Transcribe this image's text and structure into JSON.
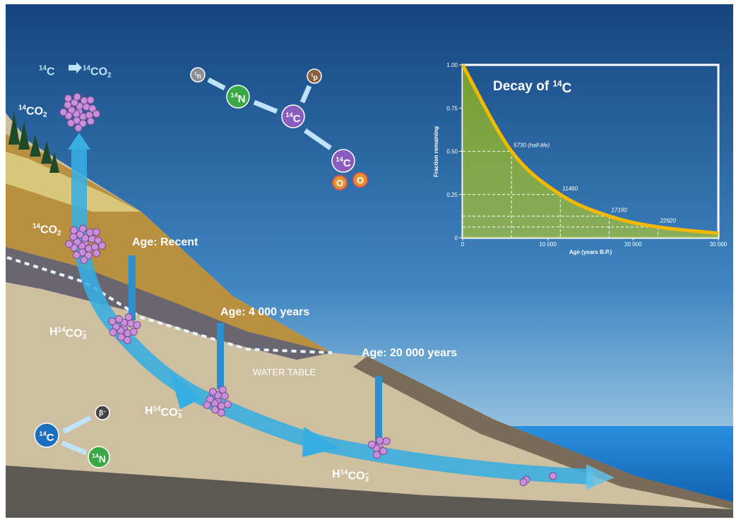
{
  "atmosphere_reaction": [
    {
      "isotope": "14",
      "symbol": "C"
    },
    {
      "isotope": "14",
      "symbol": "CO",
      "subscript": "2"
    }
  ],
  "co2_air": {
    "isotope": "14",
    "symbol": "CO",
    "subscript": "2"
  },
  "co2_soil": {
    "isotope": "14",
    "symbol": "CO",
    "subscript": "2"
  },
  "bicarbonate": [
    {
      "prefix": "H",
      "isotope": "14",
      "symbol": "CO",
      "subscript": "3",
      "superscript": "−"
    },
    {
      "prefix": "H",
      "isotope": "14",
      "symbol": "CO",
      "subscript": "3",
      "superscript": "−"
    },
    {
      "prefix": "H",
      "isotope": "14",
      "symbol": "CO",
      "subscript": "3",
      "superscript": "−"
    }
  ],
  "ages": [
    "Age: Recent",
    "Age: 4 000 years",
    "Age: 20 000 years"
  ],
  "water_table": "WATER TABLE",
  "production": {
    "neutron": {
      "isotope": "1",
      "symbol": "n"
    },
    "nitrogen": {
      "isotope": "14",
      "symbol": "N"
    },
    "carbon": {
      "isotope": "14",
      "symbol": "C"
    },
    "proton": {
      "isotope": "1",
      "symbol": "p"
    },
    "co2_carbon": {
      "isotope": "14",
      "symbol": "C"
    },
    "oxygen": [
      "O",
      "O"
    ]
  },
  "decay": {
    "carbon": {
      "isotope": "14",
      "symbol": "C"
    },
    "beta": {
      "symbol": "β",
      "superscript": "−"
    },
    "nitrogen": {
      "isotope": "14",
      "symbol": "N"
    }
  },
  "decay_chart": {
    "title": {
      "prefix": "Decay of ",
      "isotope": "14",
      "symbol": "C"
    },
    "y_label": "Fraction remaining",
    "x_label": "Age (years B.P.)",
    "xlim": [
      0,
      30000
    ],
    "ylim": [
      0,
      1
    ],
    "xticks": [
      0,
      {
        "value": 10000,
        "label": "10 000"
      },
      {
        "value": 20000,
        "label": "20 000"
      },
      {
        "value": 30000,
        "label": "30 000"
      }
    ],
    "yticks": [
      0,
      0.25,
      {
        "value": 0.5,
        "label": "0.50"
      },
      0.75,
      {
        "value": 1,
        "label": "1.00"
      }
    ],
    "curve": {
      "x": [
        0,
        5730,
        11460,
        17190,
        22920,
        30000
      ],
      "y": [
        1,
        0.5,
        0.25,
        0.125,
        0.0625,
        0.026
      ]
    },
    "markers": {
      "x": [
        5730,
        11460,
        17190,
        22920
      ],
      "y": [
        0.5,
        0.25,
        0.125,
        0.0625
      ],
      "value_labels": [
        "5730 (half-life)",
        "11460",
        "17190",
        "22920"
      ]
    }
  }
}
